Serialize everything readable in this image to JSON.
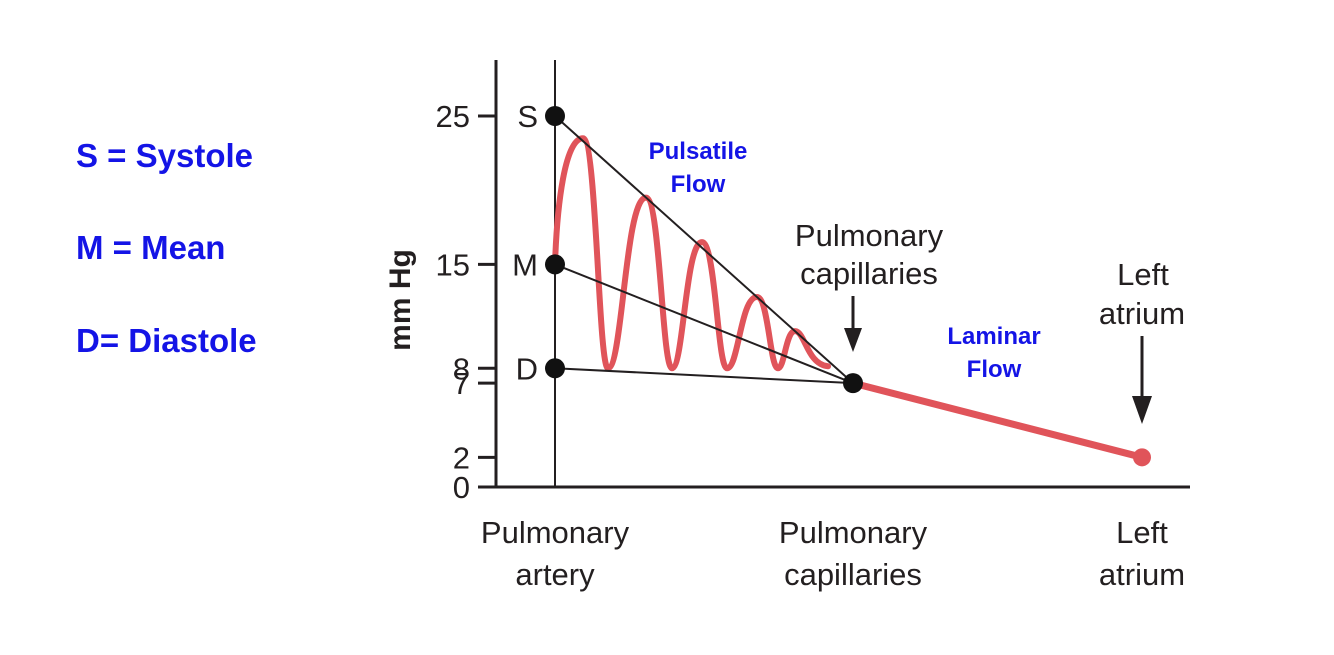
{
  "legend": {
    "items": [
      "S = Systole",
      "M = Mean",
      "D= Diastole"
    ],
    "color": "#1414e6"
  },
  "flow_labels": {
    "pulsatile": [
      "Pulsatile",
      "Flow"
    ],
    "laminar": [
      "Laminar",
      "Flow"
    ]
  },
  "colors": {
    "curve": "#e0545a",
    "ink": "#231f20",
    "label_blue": "#1414e6"
  },
  "chart_data": {
    "type": "line",
    "ylabel": "mm Hg",
    "ylim": [
      0,
      29
    ],
    "yticks": [
      0,
      2,
      7,
      8,
      15,
      25
    ],
    "categories": [
      [
        "Pulmonary",
        "artery"
      ],
      [
        "Pulmonary",
        "capillaries"
      ],
      [
        "Left",
        "atrium"
      ]
    ],
    "points": [
      {
        "label": "S",
        "category": 0,
        "value": 25
      },
      {
        "label": "M",
        "category": 0,
        "value": 15
      },
      {
        "label": "D",
        "category": 0,
        "value": 8
      },
      {
        "label": "",
        "category": 1,
        "value": 7
      },
      {
        "label": "",
        "category": 2,
        "value": 2
      }
    ],
    "pulsatile_peaks": [
      23.5,
      19.5,
      16.5,
      12.8,
      10.5
    ],
    "pulsatile_troughs": [
      8,
      8,
      8,
      8,
      8
    ],
    "laminar": {
      "from_value": 7,
      "to_value": 2
    },
    "annotations": [
      {
        "text": [
          "Pulmonary",
          "capillaries"
        ],
        "category": 1
      },
      {
        "text": [
          "Left",
          "atrium"
        ],
        "category": 2
      }
    ]
  }
}
